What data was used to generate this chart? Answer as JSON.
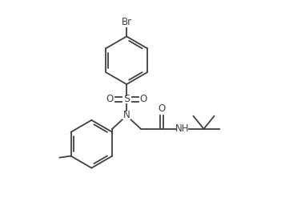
{
  "background_color": "#ffffff",
  "line_color": "#404040",
  "line_width": 1.3,
  "font_size": 8.5,
  "figsize": [
    3.51,
    2.47
  ],
  "dpi": 100,
  "xlim": [
    0,
    3.51
  ],
  "ylim": [
    0,
    2.47
  ]
}
